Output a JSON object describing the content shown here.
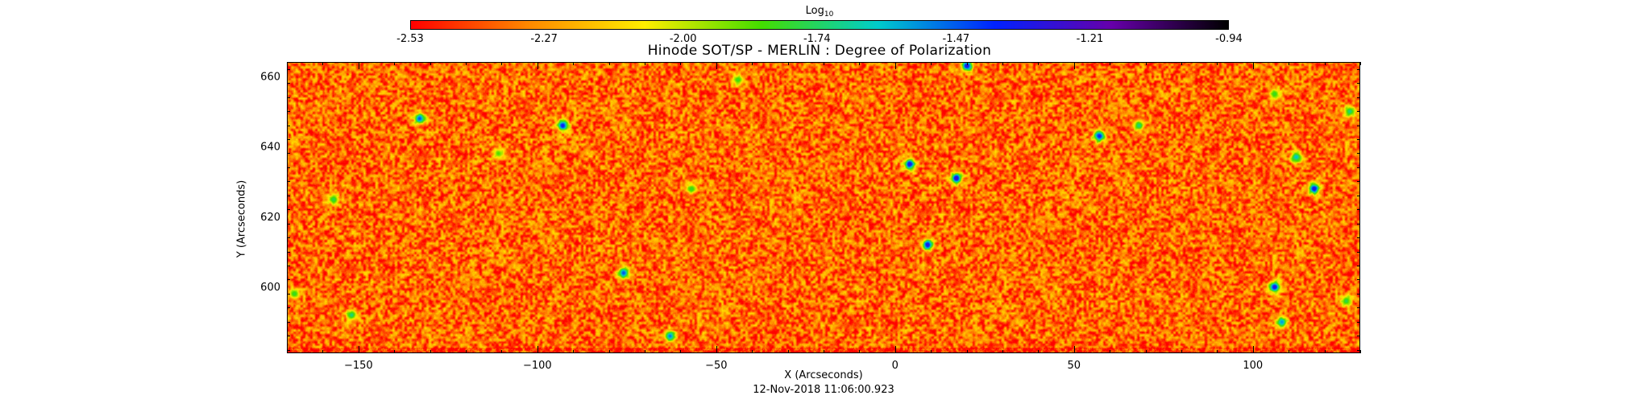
{
  "chart_data": {
    "type": "heatmap",
    "title": "Hinode SOT/SP - MERLIN : Degree of Polarization",
    "xlabel": "X (Arcseconds)",
    "ylabel": "Y (Arcseconds)",
    "timestamp": "12-Nov-2018 11:06:00.923",
    "xlim": [
      -170,
      130
    ],
    "ylim": [
      581,
      664
    ],
    "x_ticks": [
      -150,
      -100,
      -50,
      0,
      50,
      100
    ],
    "y_ticks": [
      600,
      620,
      640,
      660
    ],
    "colorbar": {
      "title": "Log",
      "title_subscript": "10",
      "range": [
        -2.53,
        -0.94
      ],
      "tick_labels": [
        "-2.53",
        "-2.27",
        "-2.00",
        "-1.74",
        "-1.47",
        "-1.21",
        "-0.94"
      ],
      "colors": [
        "#ff0000",
        "#ff8800",
        "#ffee00",
        "#44dd00",
        "#00cccc",
        "#0022ff",
        "#6600aa",
        "#000000"
      ]
    },
    "scale": "log10",
    "field_typical_log10": -2.35,
    "field_typical_spread": 0.22,
    "high_polarization_patches": [
      {
        "x": -133,
        "y": 648,
        "value": -1.45
      },
      {
        "x": -93,
        "y": 646,
        "value": -1.35
      },
      {
        "x": -157,
        "y": 625,
        "value": -1.75
      },
      {
        "x": -152,
        "y": 592,
        "value": -1.7
      },
      {
        "x": -63,
        "y": 586,
        "value": -1.5
      },
      {
        "x": -76,
        "y": 604,
        "value": -1.45
      },
      {
        "x": -111,
        "y": 638,
        "value": -1.85
      },
      {
        "x": -57,
        "y": 628,
        "value": -1.8
      },
      {
        "x": -44,
        "y": 659,
        "value": -1.8
      },
      {
        "x": 4,
        "y": 635,
        "value": -1.3
      },
      {
        "x": 17,
        "y": 631,
        "value": -1.25
      },
      {
        "x": 9,
        "y": 612,
        "value": -1.3
      },
      {
        "x": 20,
        "y": 663,
        "value": -1.3
      },
      {
        "x": 57,
        "y": 643,
        "value": -1.35
      },
      {
        "x": 68,
        "y": 646,
        "value": -1.7
      },
      {
        "x": 112,
        "y": 637,
        "value": -1.6
      },
      {
        "x": 117,
        "y": 628,
        "value": -1.3
      },
      {
        "x": 106,
        "y": 600,
        "value": -1.3
      },
      {
        "x": 108,
        "y": 590,
        "value": -1.55
      },
      {
        "x": 126,
        "y": 596,
        "value": -1.75
      },
      {
        "x": 106,
        "y": 655,
        "value": -1.8
      },
      {
        "x": 127,
        "y": 650,
        "value": -1.7
      },
      {
        "x": -168,
        "y": 598,
        "value": -1.8
      }
    ]
  }
}
